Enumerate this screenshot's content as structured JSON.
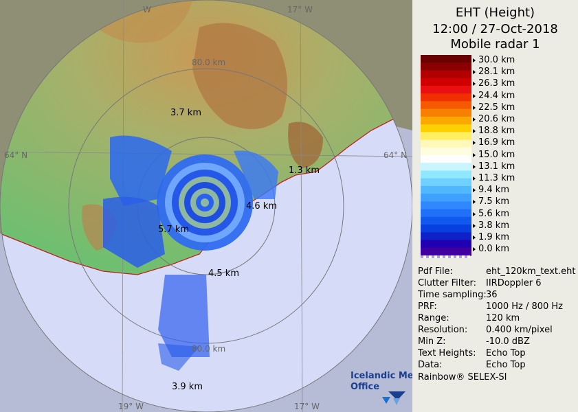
{
  "header": {
    "line1": "EHT (Height)",
    "line2": "12:00 / 27-Oct-2018",
    "line3": "Mobile radar 1"
  },
  "scale": {
    "labels": [
      "30.0 km",
      "28.1 km",
      "26.3 km",
      "24.4 km",
      "22.5 km",
      "20.6 km",
      "18.8 km",
      "16.9 km",
      "15.0 km",
      "13.1 km",
      "11.3 km",
      "9.4 km",
      "7.5 km",
      "5.6 km",
      "3.8 km",
      "1.9 km",
      "0.0 km"
    ],
    "colors": [
      "#6a0000",
      "#8a0000",
      "#b00000",
      "#d00000",
      "#e81010",
      "#f03000",
      "#f55a00",
      "#f88000",
      "#fba800",
      "#fdd000",
      "#ffee60",
      "#fff8b8",
      "#fffde0",
      "#ffffff",
      "#c8f5ff",
      "#90e8ff",
      "#70d0ff",
      "#50b8ff",
      "#40a0ff",
      "#3088ff",
      "#2070f8",
      "#1058ee",
      "#0840e0",
      "#1020c8",
      "#2000b0",
      "#4000a0"
    ]
  },
  "info": [
    {
      "key": "Pdf File:",
      "value": "eht_120km_text.eht"
    },
    {
      "key": "Clutter Filter:",
      "value": "IIRDoppler 6"
    },
    {
      "key": "Time sampling:",
      "value": "36"
    },
    {
      "key": "PRF:",
      "value": "1000 Hz / 800 Hz"
    },
    {
      "key": "Range:",
      "value": "120 km"
    },
    {
      "key": "Resolution:",
      "value": "0.400 km/pixel"
    },
    {
      "key": "Min Z:",
      "value": "-10.0 dBZ"
    },
    {
      "key": "Text Heights:",
      "value": "Echo Top"
    },
    {
      "key": "Data:",
      "value": "Echo Top"
    }
  ],
  "footer": "Rainbow® SELEX-SI",
  "map": {
    "graticule": {
      "lon_w": "W",
      "lon_17_top": "17° W",
      "lat_64_left": "64° N",
      "lat_64_right": "64° N",
      "lon_19_bottom": "19° W",
      "lon_17_bottom": "17° W"
    },
    "range_rings": {
      "r80": "80.0 km",
      "r80b": "80.0 km"
    },
    "height_labels": {
      "h1": "3.7 km",
      "h2": "1.3 km",
      "h3": "4.6 km",
      "h4": "5.7 km",
      "h5": "4.5 km",
      "h6": "3.9 km"
    },
    "logo": {
      "line1": "Icelandic Met",
      "line2": "Office"
    }
  }
}
